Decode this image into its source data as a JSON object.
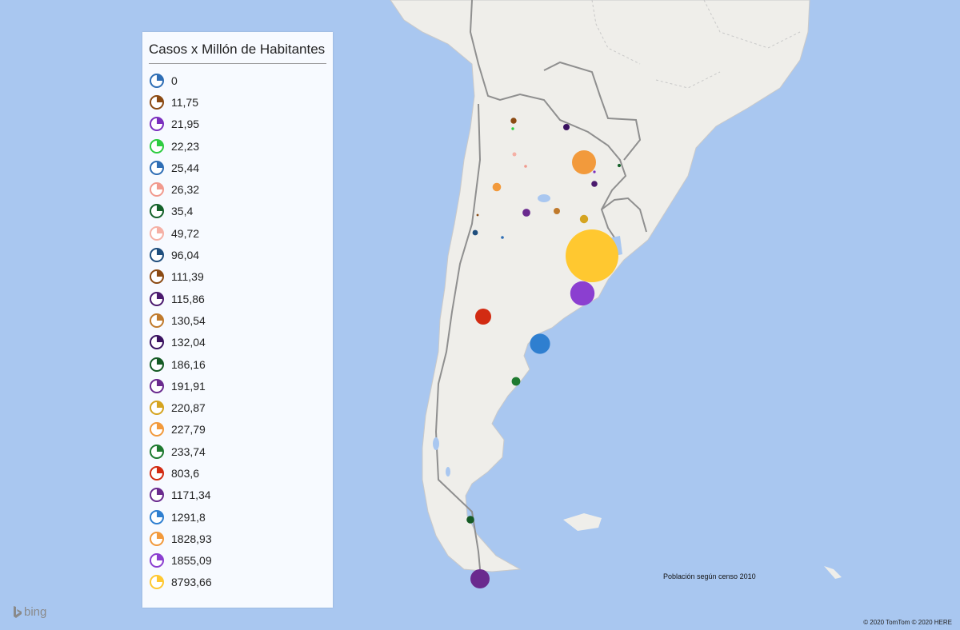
{
  "legend": {
    "title": "Casos x Millón de Habitantes",
    "items": [
      {
        "label": "0",
        "color": "#2f6eb5"
      },
      {
        "label": "11,75",
        "color": "#8b4a13"
      },
      {
        "label": "21,95",
        "color": "#7b2fbe"
      },
      {
        "label": "22,23",
        "color": "#2ecc40"
      },
      {
        "label": "25,44",
        "color": "#2f6eb5"
      },
      {
        "label": "26,32",
        "color": "#f19a8e"
      },
      {
        "label": "35,4",
        "color": "#15622a"
      },
      {
        "label": "49,72",
        "color": "#f5b0a5"
      },
      {
        "label": "96,04",
        "color": "#1f4e7d"
      },
      {
        "label": "111,39",
        "color": "#8b4a13"
      },
      {
        "label": "115,86",
        "color": "#4b1a6e"
      },
      {
        "label": "130,54",
        "color": "#c07a2c"
      },
      {
        "label": "132,04",
        "color": "#3a1260"
      },
      {
        "label": "186,16",
        "color": "#145a24"
      },
      {
        "label": "191,91",
        "color": "#6a2a8e"
      },
      {
        "label": "220,87",
        "color": "#d5a420"
      },
      {
        "label": "227,79",
        "color": "#f29a3c"
      },
      {
        "label": "233,74",
        "color": "#1f7a30"
      },
      {
        "label": "803,6",
        "color": "#d22b12"
      },
      {
        "label": "1171,34",
        "color": "#6a2a8e"
      },
      {
        "label": "1291,8",
        "color": "#2f7fd0"
      },
      {
        "label": "1828,93",
        "color": "#f29a3c"
      },
      {
        "label": "1855,09",
        "color": "#8b3fd0"
      },
      {
        "label": "8793,66",
        "color": "#ffc830"
      }
    ]
  },
  "bubbles": [
    {
      "name": "bubble-caba",
      "color": "#ffc830",
      "value": 8793.66
    },
    {
      "name": "bubble-buenos-aires",
      "color": "#8b3fd0",
      "value": 1855.09
    },
    {
      "name": "bubble-santa-fe",
      "color": "#f29a3c",
      "value": 1828.93
    },
    {
      "name": "bubble-chubut",
      "color": "#2f7fd0",
      "value": 1291.8
    },
    {
      "name": "bubble-tierra-del-fuego",
      "color": "#6a2a8e",
      "value": 1171.34
    },
    {
      "name": "bubble-neuquen",
      "color": "#d22b12",
      "value": 803.6
    },
    {
      "name": "bubble-santa-cruz-north",
      "color": "#1f7a30",
      "value": 233.74
    },
    {
      "name": "bubble-catamarca",
      "color": "#f29a3c",
      "value": 227.79
    },
    {
      "name": "bubble-entre-rios",
      "color": "#d5a420",
      "value": 220.87
    },
    {
      "name": "bubble-cordoba",
      "color": "#6a2a8e",
      "value": 191.91
    },
    {
      "name": "bubble-santa-cruz-south",
      "color": "#145a24",
      "value": 186.16
    },
    {
      "name": "bubble-chaco",
      "color": "#3a1260",
      "value": 132.04
    },
    {
      "name": "bubble-santiago",
      "color": "#c07a2c",
      "value": 130.54
    },
    {
      "name": "bubble-corrientes",
      "color": "#4b1a6e",
      "value": 115.86
    },
    {
      "name": "bubble-jujuy",
      "color": "#8b4a13",
      "value": 111.39
    },
    {
      "name": "bubble-mendoza",
      "color": "#1f4e7d",
      "value": 96.04
    },
    {
      "name": "bubble-tucuman",
      "color": "#f5b0a5",
      "value": 49.72
    },
    {
      "name": "bubble-misiones",
      "color": "#15622a",
      "value": 35.4
    },
    {
      "name": "bubble-salta",
      "color": "#f19a8e",
      "value": 26.32
    },
    {
      "name": "bubble-san-luis",
      "color": "#2f6eb5",
      "value": 25.44
    },
    {
      "name": "bubble-salta-north",
      "color": "#2ecc40",
      "value": 22.23
    },
    {
      "name": "bubble-formosa",
      "color": "#7b2fbe",
      "value": 21.95
    },
    {
      "name": "bubble-la-rioja",
      "color": "#8b4a13",
      "value": 11.75
    }
  ],
  "notes": {
    "census": "Población según censo 2010",
    "copyright": "© 2020 TomTom © 2020 HERE",
    "bing": "bing"
  },
  "colors": {
    "sea": "#a9c7f0",
    "land": "#efeeea",
    "border": "#8f8f8f"
  }
}
